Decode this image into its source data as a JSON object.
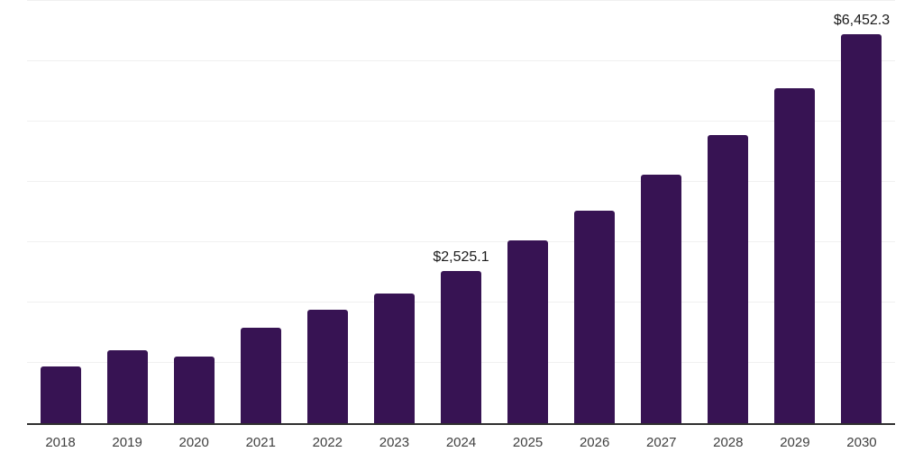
{
  "chart_data": {
    "type": "bar",
    "title": "",
    "xlabel": "",
    "ylabel": "",
    "categories": [
      "2018",
      "2019",
      "2020",
      "2021",
      "2022",
      "2023",
      "2024",
      "2025",
      "2026",
      "2027",
      "2028",
      "2029",
      "2030"
    ],
    "values": [
      940,
      1210,
      1105,
      1580,
      1880,
      2150,
      2525.1,
      3030,
      3520,
      4120,
      4775,
      5550,
      6452.3
    ],
    "point_labels": {
      "2024": "$2,525.1",
      "2030": "$6,452.3"
    },
    "ylim": [
      0,
      7000
    ],
    "gridline_interval": 1000,
    "grid": true,
    "legend": "none",
    "colors": {
      "bar": "#371353",
      "axis": "#2f2f2f",
      "gridline": "#f0f0f0",
      "tick_label": "#404040",
      "data_label": "#1a1a1a"
    }
  }
}
